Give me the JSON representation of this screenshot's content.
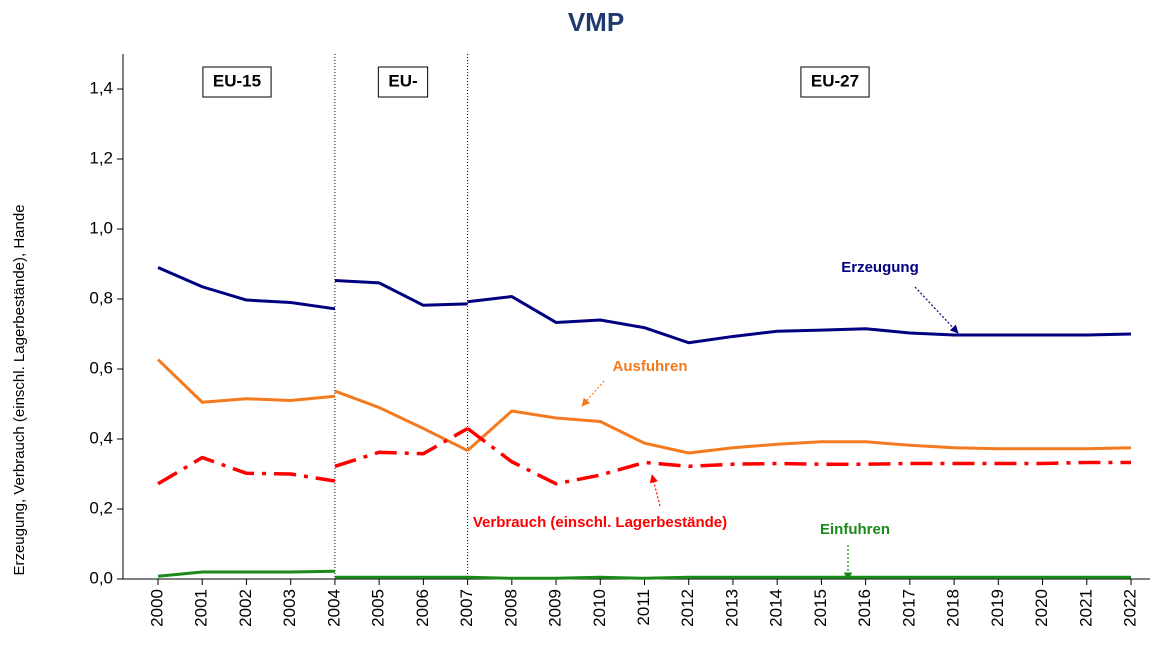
{
  "chart_data": {
    "type": "line",
    "title": "VMP",
    "y_label": "Erzeugung, Verbrauch (einschl. Lagerbestände), Hande",
    "categories": [
      "2000",
      "2001",
      "2002",
      "2003",
      "2004",
      "2005",
      "2006",
      "2007",
      "2008",
      "2009",
      "2010",
      "2011",
      "2012",
      "2013",
      "2014",
      "2015",
      "2016",
      "2017",
      "2018",
      "2019",
      "2020",
      "2021",
      "2022"
    ],
    "periods": [
      "EU-15",
      "EU-",
      "EU-27"
    ],
    "ylim": [
      0,
      1.5
    ],
    "yticks": [
      {
        "value": 0,
        "label": "0,0"
      },
      {
        "value": 0.2,
        "label": "0,2"
      },
      {
        "value": 0.4,
        "label": "0,4"
      },
      {
        "value": 0.6,
        "label": "0,6"
      },
      {
        "value": 0.8,
        "label": "0,8"
      },
      {
        "value": 1.0,
        "label": "1,0"
      },
      {
        "value": 1.2,
        "label": "1,2"
      },
      {
        "value": 1.4,
        "label": "1,4"
      }
    ],
    "series": [
      {
        "name": "Erzeugung",
        "color": "#000080",
        "dash": "solid",
        "values": [
          [
            0.89,
            0.835,
            0.797,
            0.79,
            0.772
          ],
          [
            0.853,
            0.846,
            0.782,
            0.786
          ],
          [
            0.792,
            0.807,
            0.733,
            0.74,
            0.718,
            0.675,
            0.693,
            0.708,
            0.711,
            0.715,
            0.703,
            0.697,
            0.697,
            0.697,
            0.697,
            0.7
          ]
        ]
      },
      {
        "name": "Ausfuhren",
        "color": "#f47a20",
        "dash": "solid",
        "values": [
          [
            0.627,
            0.505,
            0.515,
            0.51,
            0.522
          ],
          [
            0.537,
            0.49,
            0.43,
            0.367
          ],
          [
            0.367,
            0.48,
            0.46,
            0.45,
            0.388,
            0.36,
            0.375,
            0.385,
            0.392,
            0.392,
            0.382,
            0.375,
            0.372,
            0.372,
            0.372,
            0.375
          ]
        ]
      },
      {
        "name": "Verbrauch (einschl. Lagerbestände)",
        "color": "#ff0000",
        "dash": "dashdot",
        "values": [
          [
            0.272,
            0.347,
            0.302,
            0.3,
            0.28
          ],
          [
            0.322,
            0.362,
            0.358,
            0.43
          ],
          [
            0.43,
            0.335,
            0.272,
            0.297,
            0.333,
            0.322,
            0.328,
            0.33,
            0.328,
            0.328,
            0.33,
            0.33,
            0.33,
            0.33,
            0.333,
            0.333
          ]
        ]
      },
      {
        "name": "Einfuhren",
        "color": "#1a8a1a",
        "dash": "solid",
        "values": [
          [
            0.008,
            0.02,
            0.02,
            0.02,
            0.022
          ],
          [
            0.005,
            0.005,
            0.005,
            0.005
          ],
          [
            0.005,
            0.002,
            0.002,
            0.005,
            0.002,
            0.005,
            0.005,
            0.005,
            0.005,
            0.005,
            0.005,
            0.005,
            0.005,
            0.005,
            0.005,
            0.005
          ]
        ]
      }
    ]
  }
}
